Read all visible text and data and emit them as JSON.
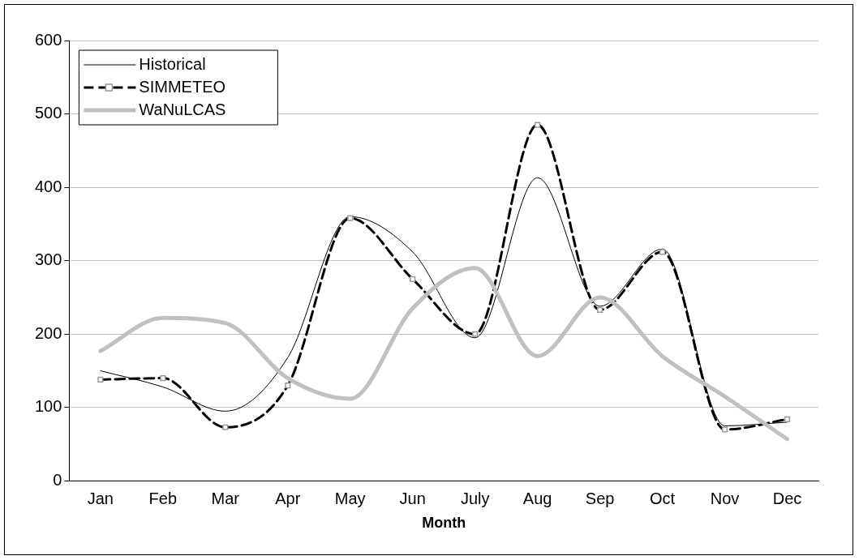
{
  "chart_data": {
    "type": "line",
    "xlabel": "Month",
    "categories": [
      "Jan",
      "Feb",
      "Mar",
      "Apr",
      "May",
      "Jun",
      "July",
      "Aug",
      "Sep",
      "Oct",
      "Nov",
      "Dec"
    ],
    "ylim": [
      0,
      600
    ],
    "yticks": [
      0,
      100,
      200,
      300,
      400,
      500,
      600
    ],
    "grid": "y",
    "legend": "top left",
    "series": [
      {
        "name": "Historical",
        "color": "#000000",
        "line_style": "solid",
        "marker": "none",
        "values": [
          150,
          128,
          95,
          168,
          360,
          312,
          195,
          413,
          238,
          316,
          75,
          80
        ]
      },
      {
        "name": "SIMMETEO",
        "color": "#000000",
        "line_style": "dashed",
        "marker": "square",
        "values": [
          138,
          140,
          73,
          130,
          358,
          275,
          200,
          485,
          233,
          312,
          70,
          84
        ]
      },
      {
        "name": "WaNuLCAS",
        "color": "#c0c0c0",
        "line_style": "solid",
        "marker": "none",
        "values": [
          177,
          222,
          215,
          140,
          112,
          235,
          290,
          170,
          250,
          170,
          115,
          57
        ]
      }
    ]
  }
}
